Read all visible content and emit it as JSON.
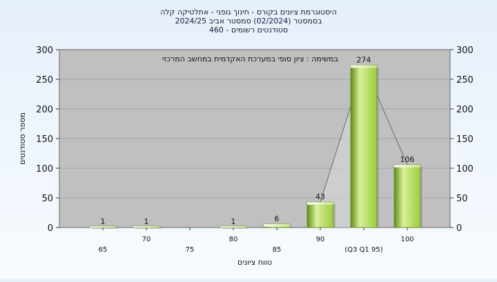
{
  "chart_data": {
    "type": "bar",
    "title_lines": [
      "היסטוגרמת ציונים בקורס - חינוך גופני - אתלטיקה קלה",
      "בסמסטר  (02/2024)  סמסטר אביב 2024/25",
      "סטודנטים רשומים - 460"
    ],
    "annotation": "במשימה : ציון סופי במערכת האקדמית במחשב המרכזי",
    "xlabel": "טווח ציונים",
    "ylabel": "מספר סטודנטים",
    "categories": [
      "65",
      "70",
      "75",
      "80",
      "85",
      "90",
      "(Q3 Q1 95)",
      "100"
    ],
    "values": [
      1,
      1,
      0,
      1,
      6,
      43,
      274,
      106
    ],
    "value_labels": [
      "1",
      "1",
      "",
      "1",
      "6",
      "43",
      "274",
      "106"
    ],
    "ylim": [
      0,
      300
    ],
    "yticks": [
      "0",
      "50",
      "100",
      "150",
      "200",
      "250",
      "300"
    ],
    "grid": true,
    "colors": {
      "bar": "#9ccc3c",
      "bar_dark": "#5e8a1a",
      "bar_light": "#d8f09a",
      "plot_bg": "#c0c0c0",
      "grid": "#8a8a8a",
      "text": "#111111",
      "title": "#1a1a3a"
    }
  }
}
